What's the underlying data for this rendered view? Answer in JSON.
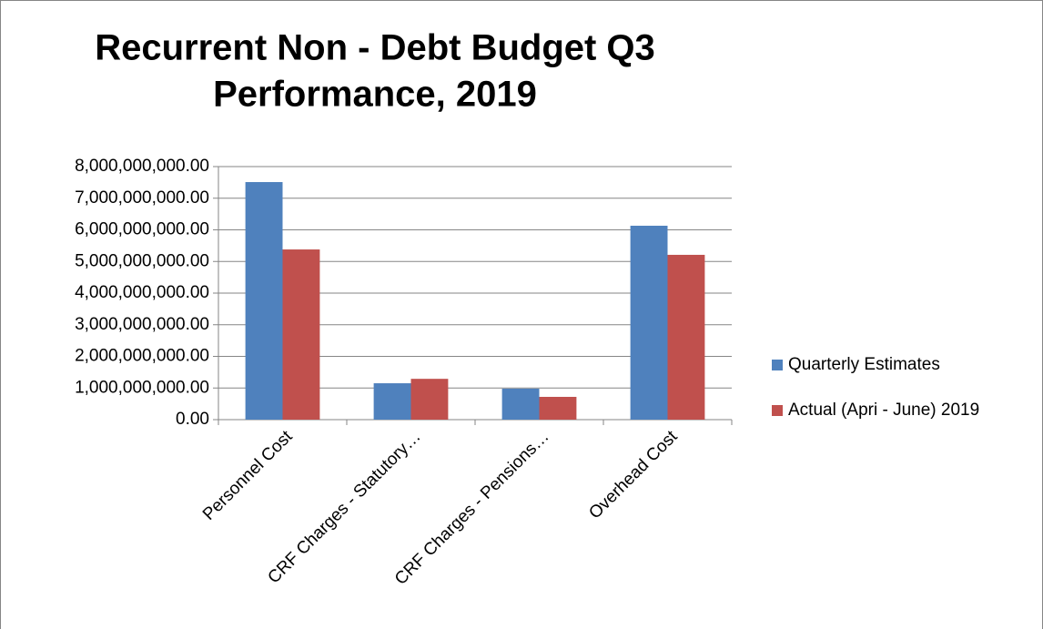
{
  "chart_data": {
    "type": "bar",
    "title": [
      "Recurrent Non - Debt Budget Q3",
      "Performance, 2019"
    ],
    "categories": [
      "Personnel Cost",
      "CRF Charges - Statutory…",
      "CRF Charges  - Pensions…",
      "Overhead Cost"
    ],
    "series": [
      {
        "name": "Quarterly Estimates",
        "color": "#4f81bd",
        "values": [
          7510000000,
          1150000000,
          980000000,
          6130000000
        ]
      },
      {
        "name": "Actual (Apri - June) 2019",
        "color": "#c0504d",
        "values": [
          5380000000,
          1290000000,
          720000000,
          5210000000
        ]
      }
    ],
    "ylim": [
      0,
      8000000000
    ],
    "yticks": [
      {
        "value": 0,
        "label": "0.00"
      },
      {
        "value": 1000000000,
        "label": "1,000,000,000.00"
      },
      {
        "value": 2000000000,
        "label": "2,000,000,000.00"
      },
      {
        "value": 3000000000,
        "label": "3,000,000,000.00"
      },
      {
        "value": 4000000000,
        "label": "4,000,000,000.00"
      },
      {
        "value": 5000000000,
        "label": "5,000,000,000.00"
      },
      {
        "value": 6000000000,
        "label": "6,000,000,000.00"
      },
      {
        "value": 7000000000,
        "label": "7,000,000,000.00"
      },
      {
        "value": 8000000000,
        "label": "8,000,000,000.00"
      }
    ],
    "grid": true,
    "legend": "right"
  }
}
